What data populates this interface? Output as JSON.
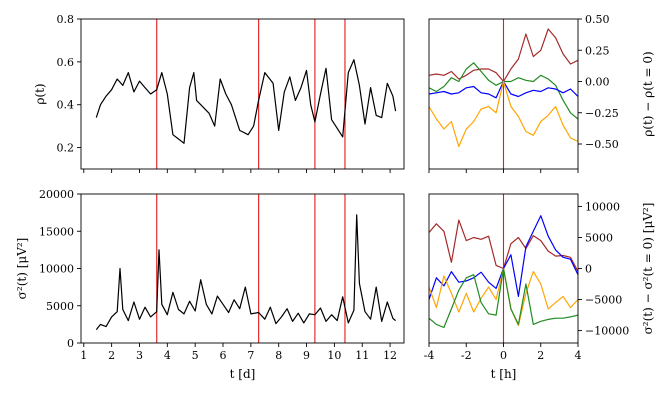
{
  "chart_data": [
    {
      "panel": "top-left",
      "type": "line",
      "xlabel": "",
      "ylabel": "ρ(t)",
      "xlim": [
        0.9,
        12.5
      ],
      "ylim": [
        0.1,
        0.8
      ],
      "yticks": [
        "0.2",
        "0.4",
        "0.6",
        "0.8"
      ],
      "xticks": [
        1,
        2,
        3,
        4,
        5,
        6,
        7,
        8,
        9,
        10,
        11,
        12
      ],
      "tick_labels_x": "hidden",
      "line_color": "#000000",
      "event_lines_x": [
        3.62,
        7.28,
        9.3,
        10.38
      ],
      "event_line_color": "#e41a1c",
      "series": [
        {
          "x": [
            1.45,
            1.6,
            1.8,
            2.0,
            2.2,
            2.4,
            2.6,
            2.8,
            3.0,
            3.2,
            3.4,
            3.62,
            3.8,
            4.0,
            4.2,
            4.4,
            4.6,
            4.8,
            4.95,
            5.05,
            5.5,
            5.7,
            5.9,
            6.1,
            6.3,
            6.6,
            6.9,
            7.1,
            7.28,
            7.5,
            7.8,
            8.0,
            8.2,
            8.4,
            8.6,
            8.8,
            9.0,
            9.15,
            9.3,
            9.5,
            9.7,
            9.9,
            10.1,
            10.3,
            10.5,
            10.7,
            10.9,
            11.1,
            11.3,
            11.5,
            11.7,
            11.9,
            12.1,
            12.2
          ],
          "y": [
            0.34,
            0.4,
            0.44,
            0.47,
            0.52,
            0.49,
            0.55,
            0.46,
            0.51,
            0.48,
            0.45,
            0.47,
            0.55,
            0.45,
            0.26,
            0.24,
            0.22,
            0.48,
            0.55,
            0.42,
            0.36,
            0.3,
            0.52,
            0.45,
            0.4,
            0.28,
            0.26,
            0.3,
            0.42,
            0.55,
            0.5,
            0.28,
            0.46,
            0.53,
            0.42,
            0.48,
            0.56,
            0.4,
            0.32,
            0.45,
            0.57,
            0.33,
            0.29,
            0.25,
            0.55,
            0.61,
            0.49,
            0.31,
            0.48,
            0.35,
            0.34,
            0.5,
            0.44,
            0.37
          ]
        }
      ]
    },
    {
      "panel": "bottom-left",
      "type": "line",
      "xlabel": "t [d]",
      "ylabel": "σ²(t) [μV²]",
      "xlim": [
        0.9,
        12.5
      ],
      "ylim": [
        0,
        20000
      ],
      "yticks": [
        "0",
        "5000",
        "10000",
        "15000",
        "20000"
      ],
      "xticks": [
        "1",
        "2",
        "3",
        "4",
        "5",
        "6",
        "7",
        "8",
        "9",
        "10",
        "11",
        "12"
      ],
      "line_color": "#000000",
      "event_lines_x": [
        3.62,
        7.28,
        9.3,
        10.38
      ],
      "event_line_color": "#e41a1c",
      "series": [
        {
          "x": [
            1.45,
            1.6,
            1.8,
            2.0,
            2.2,
            2.3,
            2.4,
            2.6,
            2.8,
            3.0,
            3.2,
            3.4,
            3.62,
            3.7,
            3.8,
            4.0,
            4.2,
            4.4,
            4.6,
            4.8,
            5.0,
            5.2,
            5.4,
            5.6,
            5.8,
            6.0,
            6.2,
            6.4,
            6.6,
            6.8,
            7.0,
            7.28,
            7.5,
            7.7,
            7.9,
            8.1,
            8.3,
            8.5,
            8.7,
            8.9,
            9.1,
            9.3,
            9.5,
            9.7,
            9.9,
            10.1,
            10.3,
            10.5,
            10.7,
            10.8,
            10.9,
            11.1,
            11.3,
            11.5,
            11.7,
            11.9,
            12.1,
            12.2
          ],
          "y": [
            1800,
            2500,
            2200,
            3500,
            4200,
            10000,
            4500,
            3000,
            5500,
            3200,
            4800,
            3500,
            4200,
            12500,
            5200,
            3800,
            6800,
            4500,
            3900,
            5600,
            4300,
            8500,
            5200,
            3900,
            6300,
            5200,
            4100,
            5800,
            4600,
            7500,
            3900,
            4100,
            3200,
            4800,
            2600,
            3500,
            4600,
            2900,
            4000,
            2700,
            3900,
            3800,
            4700,
            2900,
            3800,
            3000,
            6200,
            2700,
            4400,
            17200,
            8000,
            4200,
            3200,
            7500,
            2900,
            5500,
            3300,
            3000
          ]
        }
      ]
    },
    {
      "panel": "top-right",
      "type": "line",
      "xlabel": "",
      "ylabel": "ρ(t) − ρ(t = 0)",
      "xlim": [
        -4,
        4
      ],
      "ylim": [
        -0.7,
        0.5
      ],
      "yticks": [
        "−0.50",
        "−0.25",
        "0.00",
        "0.25",
        "0.50"
      ],
      "xticks": [
        -4,
        -2,
        0,
        2,
        4
      ],
      "tick_labels_x": "hidden",
      "event_lines_x": [
        0
      ],
      "event_line_color": "#e41a1c",
      "x": [
        -4.0,
        -3.6,
        -3.2,
        -2.8,
        -2.4,
        -2.0,
        -1.6,
        -1.2,
        -0.8,
        -0.4,
        0.0,
        0.4,
        0.8,
        1.2,
        1.6,
        2.0,
        2.4,
        2.8,
        3.2,
        3.6,
        4.0
      ],
      "series": [
        {
          "color": "#a52a2a",
          "values": [
            0.05,
            0.06,
            0.05,
            0.08,
            0.02,
            0.05,
            0.09,
            0.1,
            0.1,
            0.07,
            0.0,
            0.1,
            0.18,
            0.38,
            0.2,
            0.25,
            0.42,
            0.35,
            0.22,
            0.14,
            0.17
          ]
        },
        {
          "color": "#228b22",
          "values": [
            -0.05,
            -0.08,
            -0.04,
            0.03,
            0.0,
            0.1,
            0.15,
            0.08,
            0.01,
            -0.03,
            0.0,
            0.0,
            0.03,
            0.01,
            0.0,
            0.05,
            0.02,
            -0.03,
            -0.15,
            -0.25,
            -0.3
          ]
        },
        {
          "color": "#0000ff",
          "values": [
            -0.1,
            -0.09,
            -0.08,
            -0.1,
            -0.09,
            -0.05,
            -0.04,
            -0.09,
            -0.1,
            -0.13,
            0.0,
            -0.1,
            -0.12,
            -0.09,
            -0.07,
            -0.08,
            -0.05,
            -0.06,
            -0.09,
            -0.06,
            -0.12
          ]
        },
        {
          "color": "#ffa500",
          "values": [
            -0.2,
            -0.3,
            -0.38,
            -0.32,
            -0.52,
            -0.38,
            -0.32,
            -0.22,
            -0.2,
            -0.25,
            0.0,
            -0.2,
            -0.28,
            -0.4,
            -0.43,
            -0.32,
            -0.27,
            -0.2,
            -0.35,
            -0.45,
            -0.48
          ]
        }
      ]
    },
    {
      "panel": "bottom-right",
      "type": "line",
      "xlabel": "t [h]",
      "ylabel": "σ²(t) − σ²(t = 0) [μV²]",
      "xlim": [
        -4,
        4
      ],
      "ylim": [
        -12000,
        12000
      ],
      "yticks": [
        "−10000",
        "−5000",
        "0",
        "5000",
        "10000"
      ],
      "xticks": [
        "-4",
        "-2",
        "0",
        "2",
        "4"
      ],
      "event_lines_x": [
        0
      ],
      "event_line_color": "#e41a1c",
      "x": [
        -4.0,
        -3.6,
        -3.2,
        -2.8,
        -2.4,
        -2.0,
        -1.6,
        -1.2,
        -0.8,
        -0.4,
        0.0,
        0.4,
        0.8,
        1.2,
        1.6,
        2.0,
        2.4,
        2.8,
        3.2,
        3.6,
        4.0
      ],
      "series": [
        {
          "color": "#a52a2a",
          "values": [
            5800,
            7200,
            6000,
            1000,
            7800,
            4500,
            5000,
            4700,
            5200,
            500,
            0,
            4000,
            5000,
            3200,
            5300,
            4500,
            2800,
            2000,
            2100,
            1800,
            -500
          ]
        },
        {
          "color": "#0000ff",
          "values": [
            -5000,
            -1500,
            -2800,
            -500,
            -2200,
            -2000,
            -1500,
            -600,
            -2200,
            -3200,
            0,
            2200,
            -4500,
            3500,
            6000,
            8500,
            5200,
            3000,
            1800,
            1500,
            -1000
          ]
        },
        {
          "color": "#ffa500",
          "values": [
            -3000,
            -6300,
            -1200,
            -4000,
            -7000,
            -4000,
            -7000,
            -4800,
            -3000,
            -5000,
            0,
            -6500,
            -9200,
            -4000,
            -500,
            -2500,
            -6500,
            -5500,
            -4500,
            -6300,
            -5000
          ]
        },
        {
          "color": "#228b22",
          "values": [
            -8000,
            -9000,
            -9500,
            -6500,
            -3500,
            -1500,
            -1000,
            -5500,
            -7300,
            -7500,
            0,
            -6500,
            -9000,
            -2500,
            -9000,
            -8500,
            -8200,
            -8000,
            -8000,
            -7800,
            -7500
          ]
        }
      ]
    }
  ]
}
